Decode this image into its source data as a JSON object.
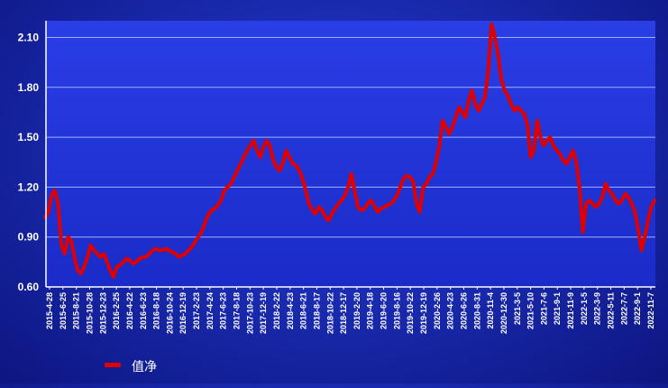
{
  "chart_data": {
    "type": "line",
    "title": "",
    "xlabel": "",
    "ylabel": "",
    "ylim": [
      0.6,
      2.2
    ],
    "y_ticks": [
      "0.60",
      "0.90",
      "1.20",
      "1.50",
      "1.80",
      "2.10"
    ],
    "grid": true,
    "legend_position": "bottom-left",
    "x_tick_labels": [
      "2015-4-28",
      "2015-6-25",
      "2015-8-21",
      "2015-10-28",
      "2015-12-23",
      "2016-2-25",
      "2016-4-22",
      "2016-6-23",
      "2016-8-18",
      "2016-10-24",
      "2016-12-19",
      "2017-2-23",
      "2017-4-24",
      "2017-6-23",
      "2017-8-18",
      "2017-10-23",
      "2017-12-19",
      "2018-2-22",
      "2018-4-23",
      "2018-6-21",
      "2018-8-17",
      "2018-10-22",
      "2018-12-17",
      "2019-2-20",
      "2019-4-18",
      "2019-6-20",
      "2019-8-16",
      "2019-10-22",
      "2019-12-19",
      "2020-2-26",
      "2020-4-23",
      "2020-6-26",
      "2020-8-31",
      "2020-11-4",
      "2020-12-30",
      "2021-3-5",
      "2021-5-10",
      "2021-7-6",
      "2021-9-1",
      "2021-11-9",
      "2022-1-5",
      "2022-3-9",
      "2022-5-11",
      "2022-7-7",
      "2022-9-1",
      "2022-11-7"
    ],
    "series": [
      {
        "name": "值净",
        "color": "#e00000",
        "values": [
          1.02,
          1.05,
          1.15,
          1.18,
          1.1,
          0.85,
          0.8,
          0.9,
          0.88,
          0.78,
          0.7,
          0.68,
          0.72,
          0.78,
          0.85,
          0.82,
          0.8,
          0.78,
          0.8,
          0.75,
          0.7,
          0.66,
          0.72,
          0.73,
          0.75,
          0.77,
          0.76,
          0.74,
          0.75,
          0.77,
          0.78,
          0.78,
          0.8,
          0.82,
          0.83,
          0.82,
          0.82,
          0.83,
          0.82,
          0.81,
          0.8,
          0.78,
          0.79,
          0.8,
          0.82,
          0.84,
          0.87,
          0.9,
          0.93,
          0.98,
          1.03,
          1.06,
          1.07,
          1.09,
          1.12,
          1.18,
          1.2,
          1.22,
          1.26,
          1.3,
          1.34,
          1.38,
          1.42,
          1.45,
          1.48,
          1.42,
          1.38,
          1.44,
          1.48,
          1.45,
          1.36,
          1.32,
          1.3,
          1.35,
          1.42,
          1.38,
          1.34,
          1.33,
          1.3,
          1.25,
          1.18,
          1.1,
          1.06,
          1.04,
          1.08,
          1.06,
          1.02,
          1.0,
          1.04,
          1.07,
          1.1,
          1.12,
          1.15,
          1.2,
          1.28,
          1.18,
          1.08,
          1.06,
          1.07,
          1.1,
          1.12,
          1.09,
          1.05,
          1.07,
          1.08,
          1.09,
          1.1,
          1.12,
          1.15,
          1.2,
          1.25,
          1.27,
          1.26,
          1.23,
          1.1,
          1.05,
          1.2,
          1.22,
          1.26,
          1.28,
          1.35,
          1.45,
          1.6,
          1.56,
          1.52,
          1.56,
          1.62,
          1.68,
          1.65,
          1.62,
          1.72,
          1.78,
          1.7,
          1.66,
          1.7,
          1.74,
          1.9,
          2.18,
          2.1,
          2.0,
          1.85,
          1.78,
          1.75,
          1.7,
          1.66,
          1.68,
          1.66,
          1.64,
          1.58,
          1.38,
          1.42,
          1.6,
          1.5,
          1.45,
          1.48,
          1.5,
          1.45,
          1.42,
          1.4,
          1.36,
          1.34,
          1.38,
          1.42,
          1.35,
          1.2,
          0.93,
          1.1,
          1.12,
          1.1,
          1.08,
          1.1,
          1.14,
          1.22,
          1.18,
          1.16,
          1.12,
          1.1,
          1.12,
          1.16,
          1.14,
          1.1,
          1.05,
          0.95,
          0.82,
          0.9,
          1.0,
          1.08,
          1.12
        ]
      }
    ]
  }
}
